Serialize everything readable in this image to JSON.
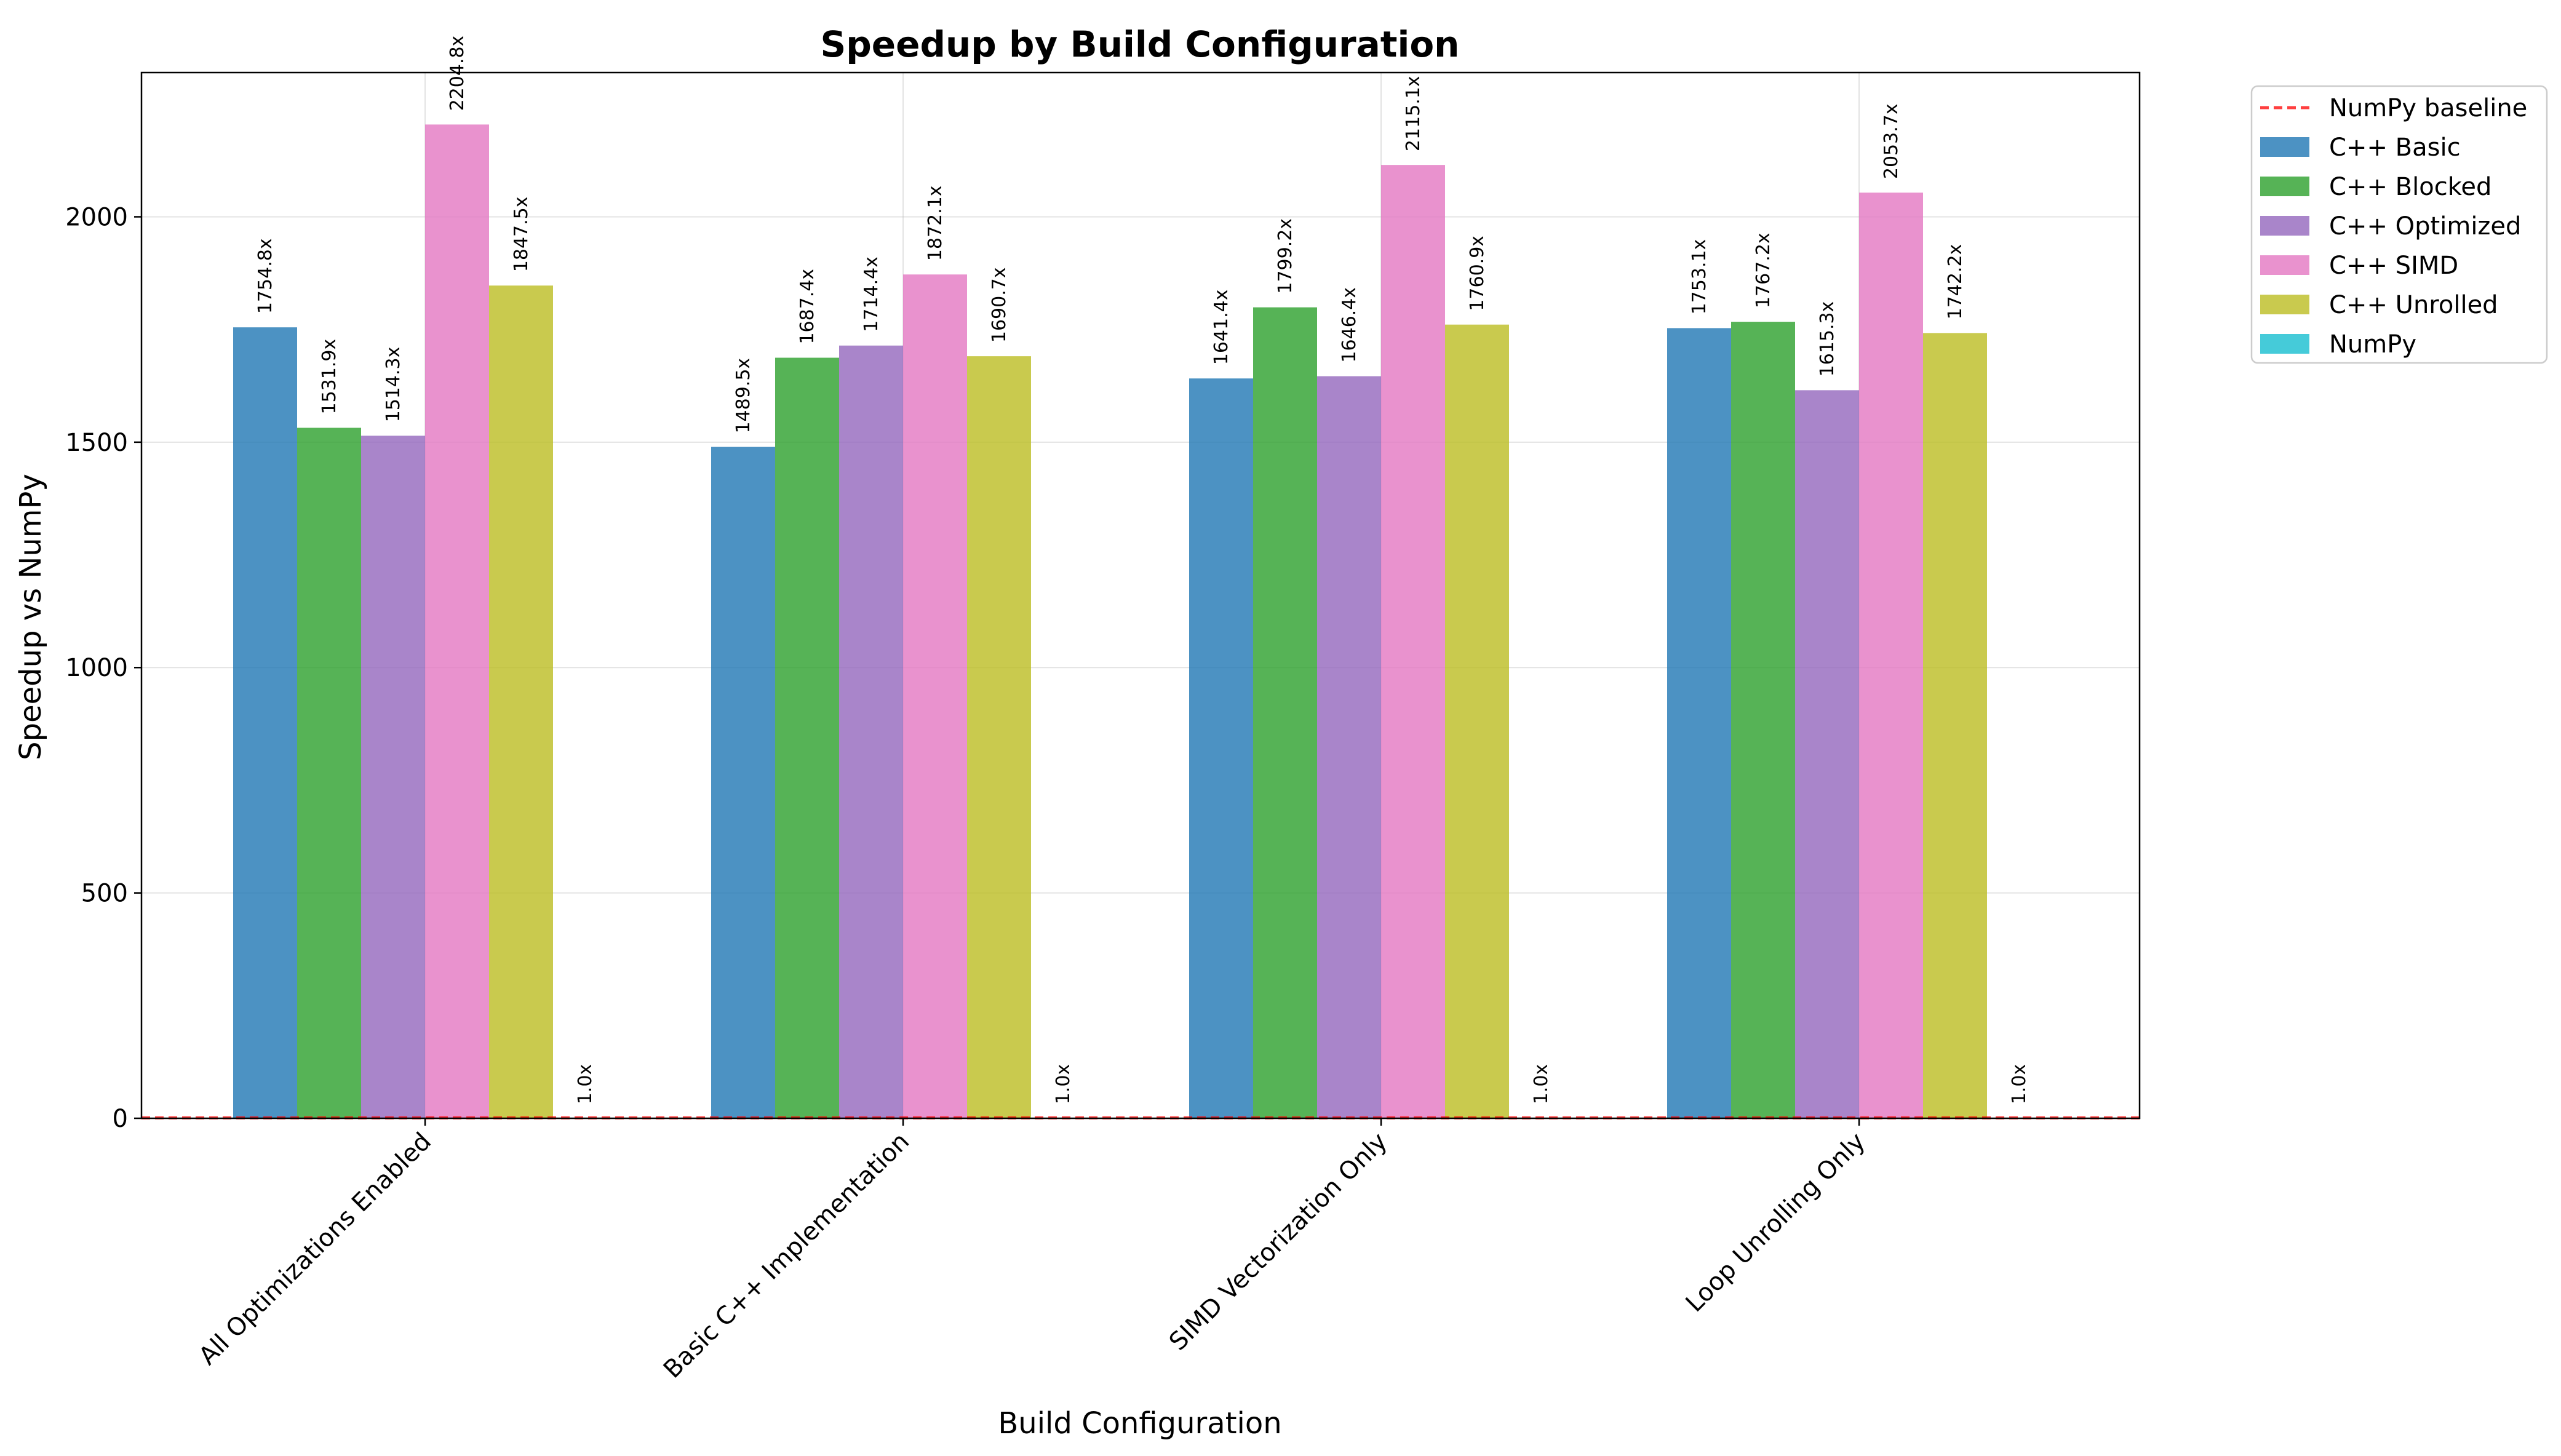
{
  "chart_data": {
    "type": "bar",
    "title": "Speedup by Build Configuration",
    "xlabel": "Build Configuration",
    "ylabel": "Speedup vs NumPy",
    "ylim": [
      0,
      2320
    ],
    "yticks": [
      0,
      500,
      1000,
      1500,
      2000
    ],
    "grid": true,
    "legend_placement": "outside-top-right",
    "categories": [
      "All Optimizations Enabled",
      "Basic C++ Implementation",
      "SIMD Vectorization Only",
      "Loop Unrolling Only"
    ],
    "series": [
      {
        "name": "C++ Basic",
        "color": "#1f77b4",
        "values": [
          1754.8,
          1489.5,
          1641.4,
          1753.1
        ],
        "labels": [
          "1754.8x",
          "1489.5x",
          "1641.4x",
          "1753.1x"
        ]
      },
      {
        "name": "C++ Blocked",
        "color": "#2ca02c",
        "values": [
          1531.9,
          1687.4,
          1799.2,
          1767.2
        ],
        "labels": [
          "1531.9x",
          "1687.4x",
          "1799.2x",
          "1767.2x"
        ]
      },
      {
        "name": "C++ Optimized",
        "color": "#9467bd",
        "values": [
          1514.3,
          1714.4,
          1646.4,
          1615.3
        ],
        "labels": [
          "1514.3x",
          "1714.4x",
          "1646.4x",
          "1615.3x"
        ]
      },
      {
        "name": "C++ SIMD",
        "color": "#e377c2",
        "values": [
          2204.8,
          1872.1,
          2115.1,
          2053.7
        ],
        "labels": [
          "2204.8x",
          "1872.1x",
          "2115.1x",
          "2053.7x"
        ]
      },
      {
        "name": "C++ Unrolled",
        "color": "#bcbd22",
        "values": [
          1847.5,
          1690.7,
          1760.9,
          1742.2
        ],
        "labels": [
          "1847.5x",
          "1690.7x",
          "1760.9x",
          "1742.2x"
        ]
      },
      {
        "name": "NumPy",
        "color": "#17becf",
        "values": [
          1.0,
          1.0,
          1.0,
          1.0
        ],
        "labels": [
          "1.0x",
          "1.0x",
          "1.0x",
          "1.0x"
        ]
      }
    ],
    "reference_line": {
      "name": "NumPy baseline",
      "value": 1.0,
      "color": "#ff0000",
      "style": "dashed"
    }
  }
}
